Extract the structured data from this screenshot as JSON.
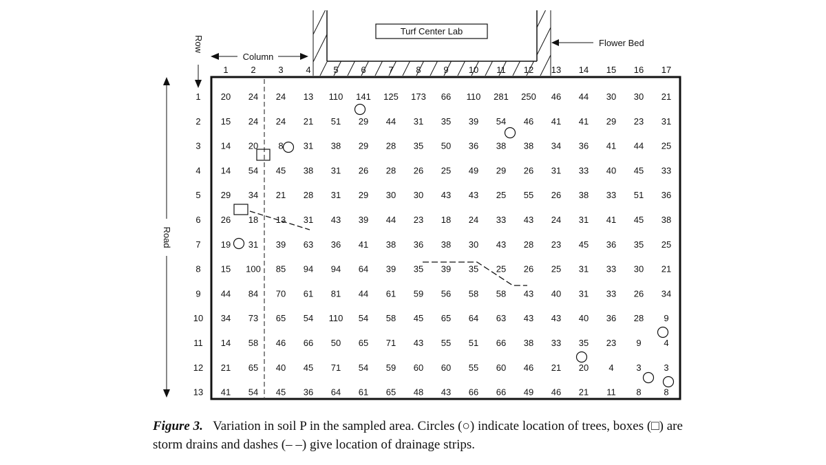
{
  "figure": {
    "lab_label": "Turf Center Lab",
    "flower_bed_label": "Flower Bed",
    "column_label": "Column",
    "row_label": "Row",
    "road_label": "Road",
    "columns": [
      "1",
      "2",
      "3",
      "4",
      "5",
      "6",
      "7",
      "8",
      "9",
      "10",
      "11",
      "12",
      "13",
      "14",
      "15",
      "16",
      "17"
    ],
    "rows": [
      "1",
      "2",
      "3",
      "4",
      "5",
      "6",
      "7",
      "8",
      "9",
      "10",
      "11",
      "12",
      "13"
    ],
    "values": [
      [
        20,
        24,
        24,
        13,
        110,
        141,
        125,
        173,
        66,
        110,
        281,
        250,
        46,
        44,
        30,
        30,
        21
      ],
      [
        15,
        24,
        24,
        21,
        51,
        29,
        44,
        31,
        35,
        39,
        54,
        46,
        41,
        41,
        29,
        23,
        31
      ],
      [
        14,
        20,
        8,
        31,
        38,
        29,
        28,
        35,
        50,
        36,
        38,
        38,
        34,
        36,
        41,
        44,
        25
      ],
      [
        14,
        54,
        45,
        38,
        31,
        26,
        28,
        26,
        25,
        49,
        29,
        26,
        31,
        33,
        40,
        45,
        33
      ],
      [
        29,
        34,
        21,
        28,
        31,
        29,
        30,
        30,
        43,
        43,
        25,
        55,
        26,
        38,
        33,
        51,
        36
      ],
      [
        26,
        18,
        13,
        31,
        43,
        39,
        44,
        23,
        18,
        24,
        33,
        43,
        24,
        31,
        41,
        45,
        38
      ],
      [
        19,
        31,
        39,
        63,
        36,
        41,
        38,
        36,
        38,
        30,
        43,
        28,
        23,
        45,
        36,
        35,
        25
      ],
      [
        15,
        100,
        85,
        94,
        94,
        64,
        39,
        35,
        39,
        35,
        25,
        26,
        25,
        31,
        33,
        30,
        21
      ],
      [
        44,
        84,
        70,
        61,
        81,
        44,
        61,
        59,
        56,
        58,
        58,
        43,
        40,
        31,
        33,
        26,
        34
      ],
      [
        34,
        73,
        65,
        54,
        110,
        54,
        58,
        45,
        65,
        64,
        63,
        43,
        43,
        40,
        36,
        28,
        9
      ],
      [
        14,
        58,
        46,
        66,
        50,
        65,
        71,
        43,
        55,
        51,
        66,
        38,
        33,
        35,
        23,
        9,
        4
      ],
      [
        21,
        65,
        40,
        45,
        71,
        54,
        59,
        60,
        60,
        55,
        60,
        46,
        21,
        20,
        4,
        3,
        3
      ],
      [
        41,
        54,
        45,
        36,
        64,
        61,
        65,
        48,
        43,
        66,
        66,
        49,
        46,
        21,
        11,
        8,
        8
      ]
    ]
  },
  "caption": {
    "label": "Figure 3.",
    "text": "Variation in soil P in the sampled area. Circles (○) indicate location of trees, boxes (□) are storm drains and dashes (– –) give location of drainage strips."
  }
}
